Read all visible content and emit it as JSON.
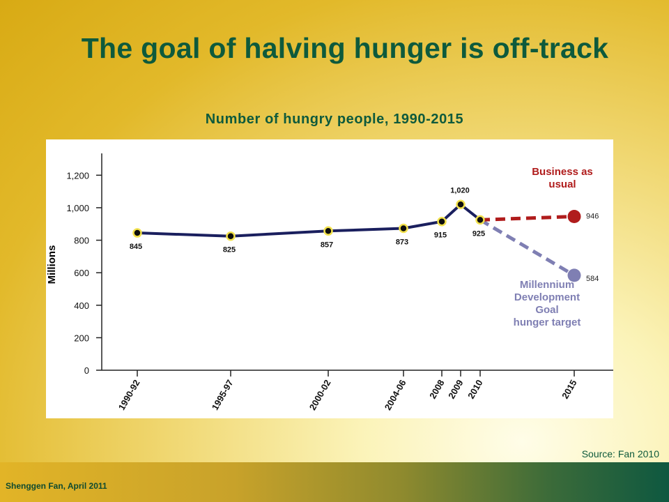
{
  "slide": {
    "title": "The goal of halving hunger is off-track",
    "source": "Source: Fan 2010",
    "footer": "Shenggen Fan, April 2011"
  },
  "colors": {
    "title": "#0e5a3c",
    "main_line": "#1a1f5e",
    "marker_fill": "#0d0d0d",
    "marker_ring": "#f2e14c",
    "business_as_usual": "#b01c1c",
    "mdg_target": "#7f7fb3"
  },
  "chart_data": {
    "type": "line",
    "title": "Number of hungry people, 1990-2015",
    "ylabel": "Millions",
    "xlabel": "",
    "ylim": [
      0,
      1300
    ],
    "yticks": [
      0,
      200,
      400,
      600,
      800,
      1000,
      1200
    ],
    "ytick_labels": [
      "0",
      "200",
      "400",
      "600",
      "800",
      "1,000",
      "1,200"
    ],
    "categories": [
      "1990-92",
      "1995-97",
      "2000-02",
      "2004-06",
      "2008",
      "2009",
      "2010",
      "2015"
    ],
    "series": [
      {
        "x": [
          "1990-92",
          "1995-97",
          "2000-02",
          "2004-06",
          "2008",
          "2009",
          "2010"
        ],
        "values": [
          845,
          825,
          857,
          873,
          915,
          1020,
          925
        ],
        "labels": [
          "845",
          "825",
          "857",
          "873",
          "915",
          "1,020",
          "925"
        ],
        "style": "solid"
      },
      {
        "name": "Business as usual",
        "x": [
          "2010",
          "2015"
        ],
        "values": [
          925,
          946
        ],
        "end_label": "946",
        "style": "dashed"
      },
      {
        "name": "Millennium Development Goal hunger target",
        "x": [
          "2010",
          "2015"
        ],
        "values": [
          925,
          584
        ],
        "end_label": "584",
        "style": "dashed"
      }
    ],
    "annotations": {
      "business_as_usual": [
        "Business as",
        "usual"
      ],
      "mdg_target": [
        "Millennium",
        "Development",
        "Goal",
        "hunger target"
      ]
    },
    "grid": false,
    "legend": "none"
  }
}
